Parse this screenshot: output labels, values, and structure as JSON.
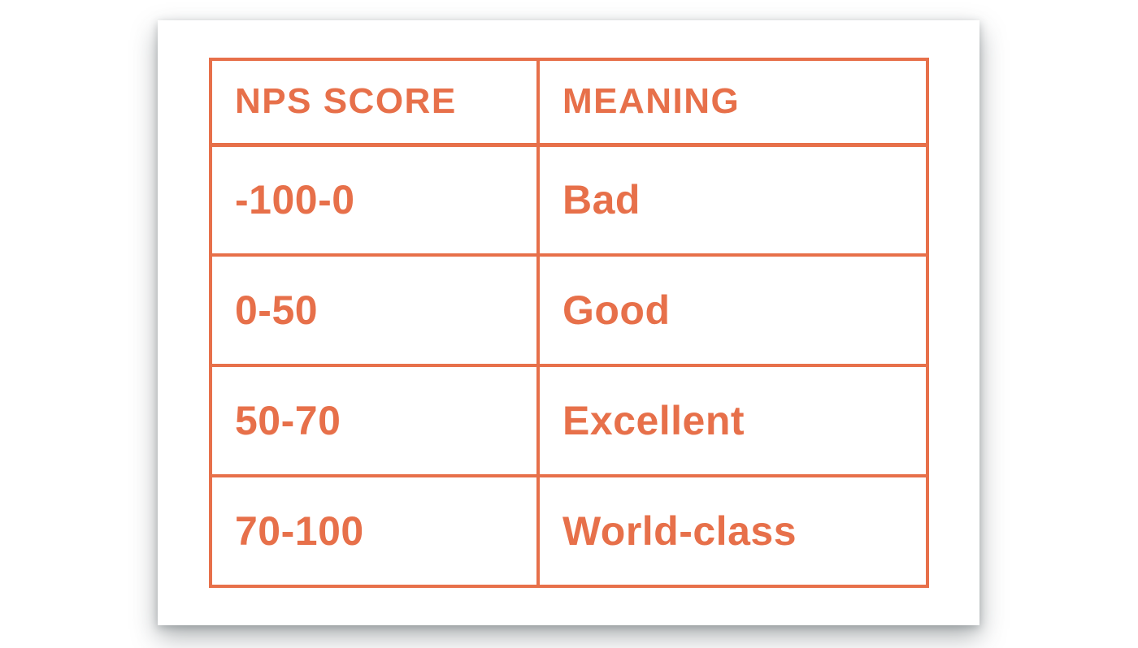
{
  "colors": {
    "accent": "#E7704A",
    "card_background": "#FFFFFF",
    "page_background": "#FFFFFF"
  },
  "chart_data": {
    "type": "table",
    "title": "",
    "columns": [
      "NPS SCORE",
      "MEANING"
    ],
    "rows": [
      [
        "-100-0",
        "Bad"
      ],
      [
        "0-50",
        "Good"
      ],
      [
        "50-70",
        "Excellent"
      ],
      [
        "70-100",
        "World-class"
      ]
    ]
  }
}
